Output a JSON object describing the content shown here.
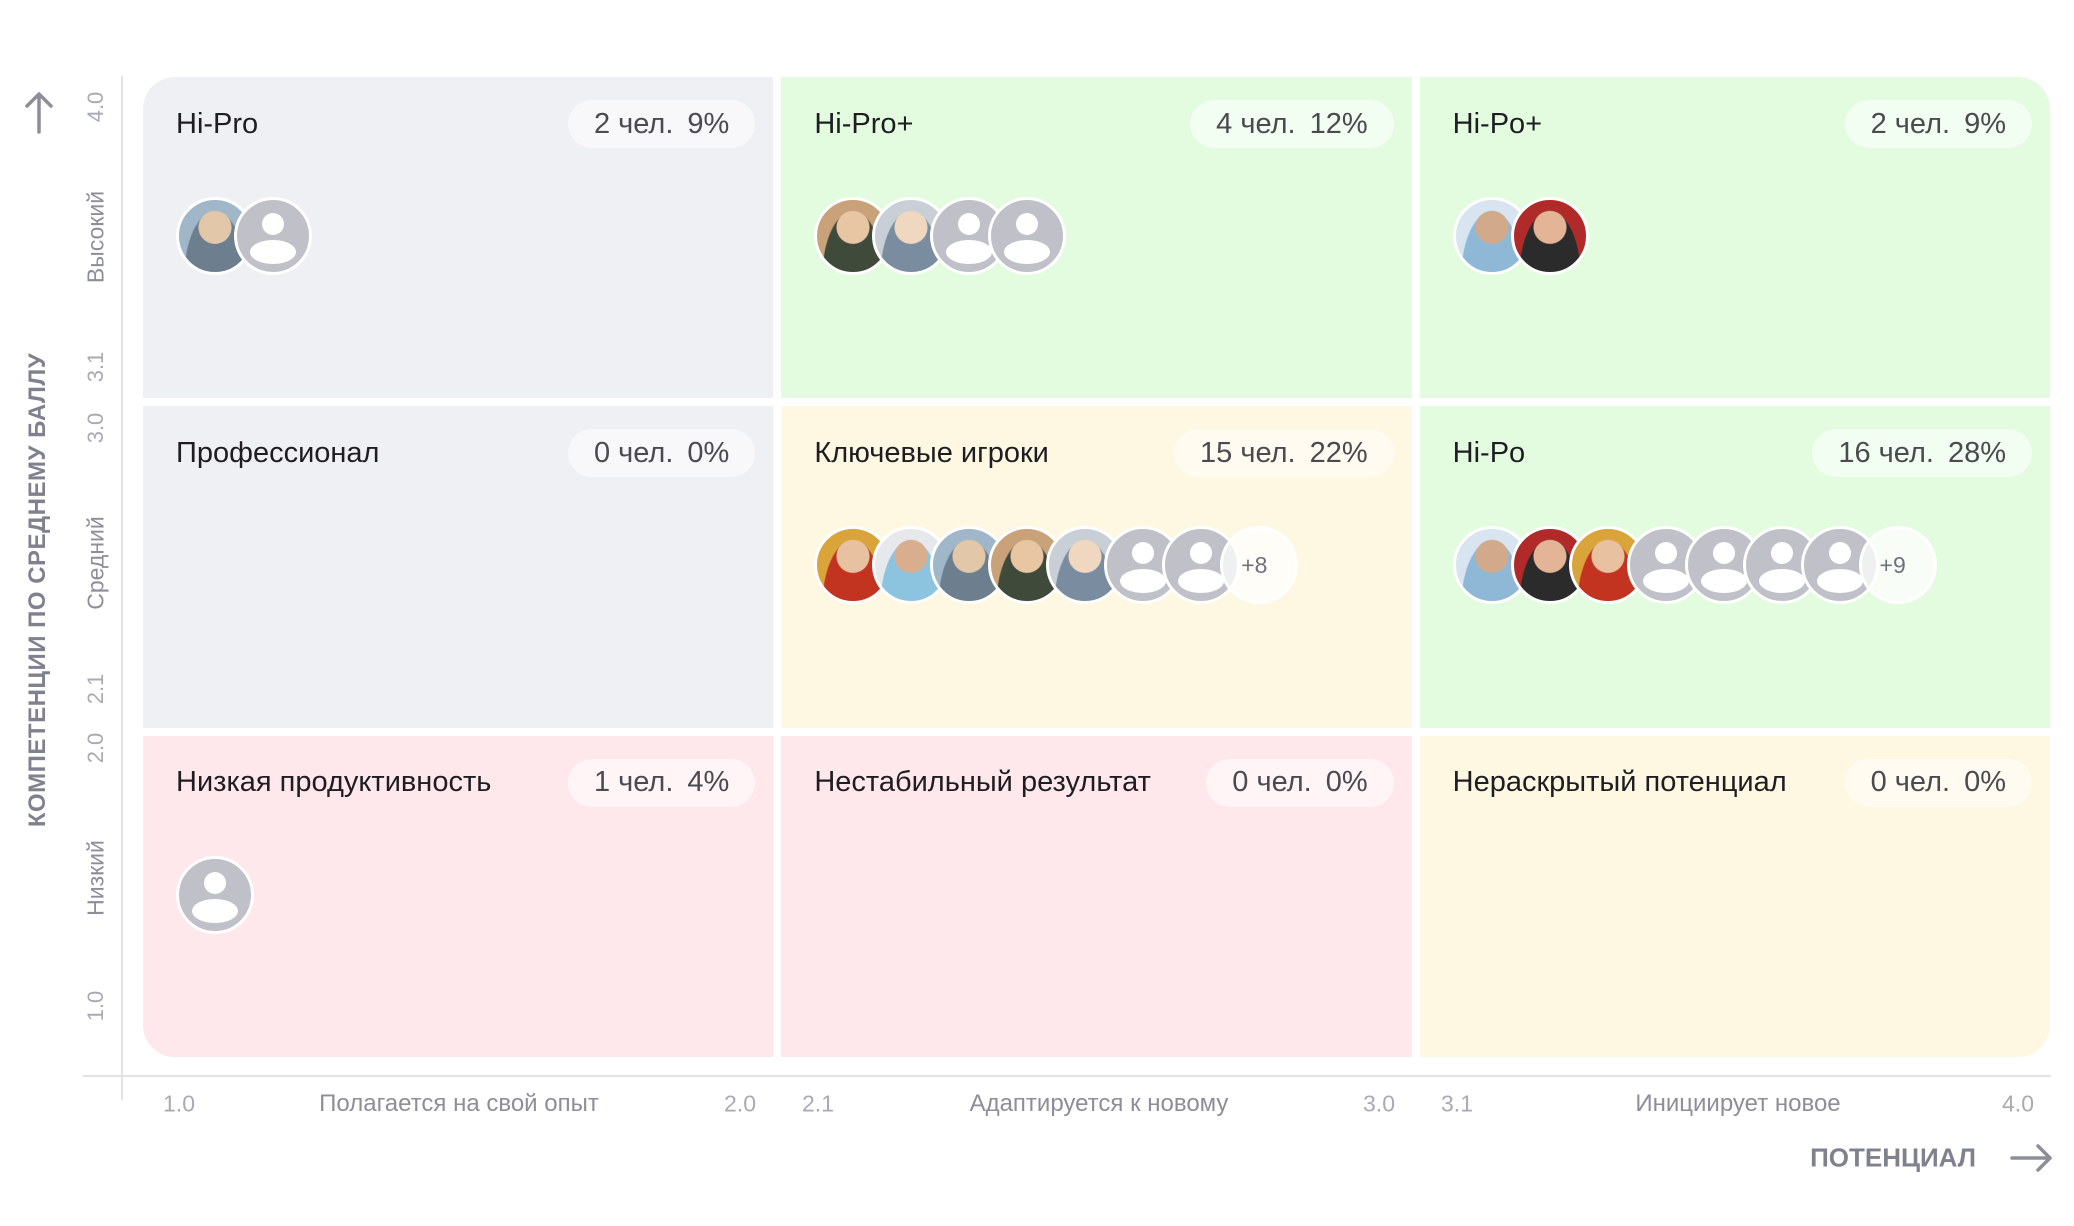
{
  "y_axis": {
    "title": "КОМПЕТЕНЦИИ ПО СРЕДНЕМУ БАЛЛУ",
    "arrow_icon": "arrow-up-icon",
    "bands": [
      {
        "label": "Высокий",
        "min": "3.1",
        "max": "4.0"
      },
      {
        "label": "Средний",
        "min": "2.1",
        "max": "3.0"
      },
      {
        "label": "Низкий",
        "min": "1.0",
        "max": "2.0"
      }
    ]
  },
  "x_axis": {
    "title": "ПОТЕНЦИАЛ",
    "arrow_icon": "arrow-right-icon",
    "bands": [
      {
        "label": "Полагается на свой опыт",
        "min": "1.0",
        "max": "2.0"
      },
      {
        "label": "Адаптируется к новому",
        "min": "2.1",
        "max": "3.0"
      },
      {
        "label": "Инициирует новое",
        "min": "3.1",
        "max": "4.0"
      }
    ]
  },
  "colors": {
    "gray": "#eff0f4",
    "green": "#e3fcdf",
    "yellow": "#fef7e1",
    "pink": "#ffe8eb",
    "axis_text": "#80818e"
  },
  "cells": [
    {
      "title": "Hi-Pro",
      "count": "2 чел.",
      "percent": "9%",
      "color": "gray",
      "avatars": [
        "photo",
        "placeholder"
      ],
      "more": null
    },
    {
      "title": "Hi-Pro+",
      "count": "4 чел.",
      "percent": "12%",
      "color": "green",
      "avatars": [
        "photo",
        "photo",
        "placeholder",
        "placeholder"
      ],
      "more": null
    },
    {
      "title": "Hi-Po+",
      "count": "2 чел.",
      "percent": "9%",
      "color": "green",
      "avatars": [
        "photo",
        "photo"
      ],
      "more": null
    },
    {
      "title": "Профессионал",
      "count": "0 чел.",
      "percent": "0%",
      "color": "gray",
      "avatars": [],
      "more": null
    },
    {
      "title": "Ключевые игроки",
      "count": "15 чел.",
      "percent": "22%",
      "color": "yellow",
      "avatars": [
        "photo",
        "photo",
        "photo",
        "photo",
        "photo",
        "placeholder",
        "placeholder"
      ],
      "more": "+8"
    },
    {
      "title": "Hi-Po",
      "count": "16 чел.",
      "percent": "28%",
      "color": "green",
      "avatars": [
        "photo",
        "photo",
        "photo",
        "placeholder",
        "placeholder",
        "placeholder",
        "placeholder"
      ],
      "more": "+9"
    },
    {
      "title": "Низкая продуктивность",
      "count": "1 чел.",
      "percent": "4%",
      "color": "pink",
      "avatars": [
        "placeholder"
      ],
      "more": null
    },
    {
      "title": "Нестабильный результат",
      "count": "0 чел.",
      "percent": "0%",
      "color": "pink",
      "avatars": [],
      "more": null
    },
    {
      "title": "Нераскрытый потенциал",
      "count": "0 чел.",
      "percent": "0%",
      "color": "yellow",
      "avatars": [],
      "more": null
    }
  ],
  "chart_data": {
    "type": "table",
    "title": "9-box: Компетенции по среднему баллу × Потенциал",
    "xlabel": "ПОТЕНЦИАЛ",
    "ylabel": "КОМПЕТЕНЦИИ ПО СРЕДНЕМУ БАЛЛУ",
    "x_categories": [
      "Полагается на свой опыт (1.0–2.0)",
      "Адаптируется к новому (2.1–3.0)",
      "Инициирует новое (3.1–4.0)"
    ],
    "y_categories": [
      "Высокий (3.1–4.0)",
      "Средний (2.1–3.0)",
      "Низкий (1.0–2.0)"
    ],
    "x_ticks": [
      "1.0",
      "2.0",
      "2.1",
      "3.0",
      "3.1",
      "4.0"
    ],
    "y_ticks": [
      "4.0",
      "3.1",
      "3.0",
      "2.1",
      "2.0",
      "1.0"
    ],
    "cells": [
      {
        "row": "Высокий",
        "col": "Полагается на свой опыт",
        "name": "Hi-Pro",
        "people": 2,
        "percent": 9
      },
      {
        "row": "Высокий",
        "col": "Адаптируется к новому",
        "name": "Hi-Pro+",
        "people": 4,
        "percent": 12
      },
      {
        "row": "Высокий",
        "col": "Инициирует новое",
        "name": "Hi-Po+",
        "people": 2,
        "percent": 9
      },
      {
        "row": "Средний",
        "col": "Полагается на свой опыт",
        "name": "Профессионал",
        "people": 0,
        "percent": 0
      },
      {
        "row": "Средний",
        "col": "Адаптируется к новому",
        "name": "Ключевые игроки",
        "people": 15,
        "percent": 22
      },
      {
        "row": "Средний",
        "col": "Инициирует новое",
        "name": "Hi-Po",
        "people": 16,
        "percent": 28
      },
      {
        "row": "Низкий",
        "col": "Полагается на свой опыт",
        "name": "Низкая продуктивность",
        "people": 1,
        "percent": 4
      },
      {
        "row": "Низкий",
        "col": "Адаптируется к новому",
        "name": "Нестабильный результат",
        "people": 0,
        "percent": 0
      },
      {
        "row": "Низкий",
        "col": "Инициирует новое",
        "name": "Нераскрытый потенциал",
        "people": 0,
        "percent": 0
      }
    ]
  }
}
